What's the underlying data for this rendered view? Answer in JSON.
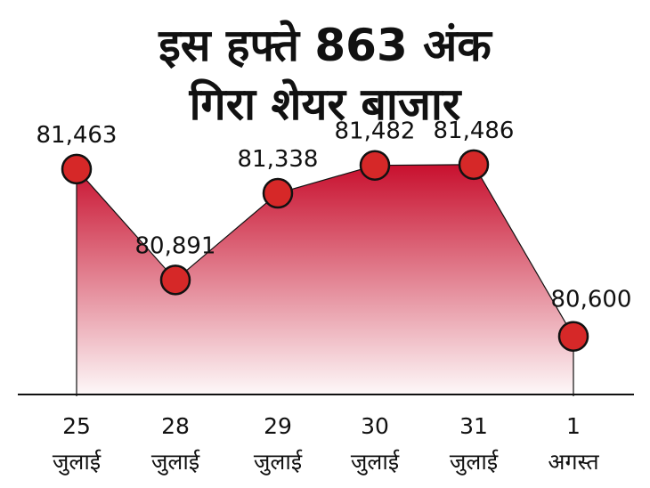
{
  "title_lines": [
    "इस हफ्ते 863 अंक",
    "गिरा शेयर बाजार"
  ],
  "chart_data": {
    "type": "area",
    "title": "इस हफ्ते 863 अंक गिरा शेयर बाजार",
    "x": [
      {
        "day": "25",
        "month": "जुलाई"
      },
      {
        "day": "28",
        "month": "जुलाई"
      },
      {
        "day": "29",
        "month": "जुलाई"
      },
      {
        "day": "30",
        "month": "जुलाई"
      },
      {
        "day": "31",
        "month": "जुलाई"
      },
      {
        "day": "1",
        "month": "अगस्त"
      }
    ],
    "values": [
      81463,
      80891,
      81338,
      81482,
      81486,
      80600
    ],
    "value_labels": [
      "81,463",
      "80,891",
      "81,338",
      "81,482",
      "81,486",
      "80,600"
    ],
    "ylim": [
      80300,
      81600
    ],
    "colors": {
      "marker": "#d62828",
      "fill_top": "#c8102e",
      "line": "#111111"
    }
  }
}
